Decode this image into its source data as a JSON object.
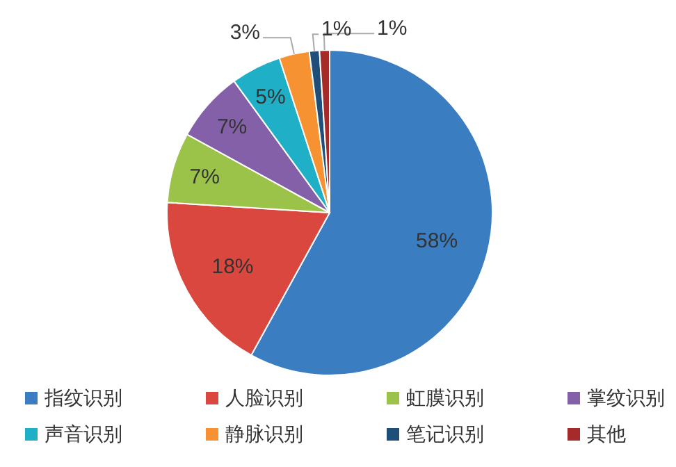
{
  "chart_data": {
    "type": "pie",
    "categories": [
      "指纹识别",
      "人脸识别",
      "虹膜识别",
      "掌纹识别",
      "声音识别",
      "静脉识别",
      "笔记识别",
      "其他"
    ],
    "values": [
      58,
      18,
      7,
      7,
      5,
      3,
      1,
      1
    ],
    "colors": [
      "#3a7dc0",
      "#d9473f",
      "#9bc34a",
      "#8460a8",
      "#1fb0c8",
      "#f79232",
      "#1f4e79",
      "#a52a2a"
    ],
    "value_labels": [
      "58%",
      "18%",
      "7%",
      "7%",
      "5%",
      "3%",
      "1%",
      "1%"
    ],
    "legend": "bottom"
  }
}
